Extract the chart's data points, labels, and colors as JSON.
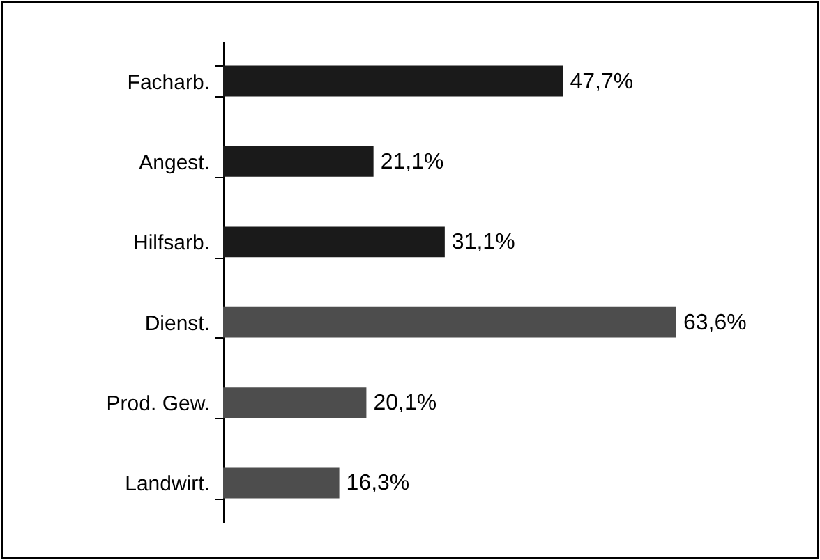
{
  "chart_data": {
    "type": "bar",
    "orientation": "horizontal",
    "categories": [
      "Facharb.",
      "Angest.",
      "Hilfsarb.",
      "Dienst.",
      "Prod. Gew.",
      "Landwirt."
    ],
    "values": [
      47.7,
      21.1,
      31.1,
      63.6,
      20.1,
      16.3
    ],
    "colors": [
      "#1a1a1a",
      "#1a1a1a",
      "#1a1a1a",
      "#4d4d4d",
      "#4d4d4d",
      "#4d4d4d"
    ],
    "value_labels": [
      "47,7%",
      "21,1%",
      "31,1%",
      "63,6%",
      "20,1%",
      "16,3%"
    ]
  }
}
